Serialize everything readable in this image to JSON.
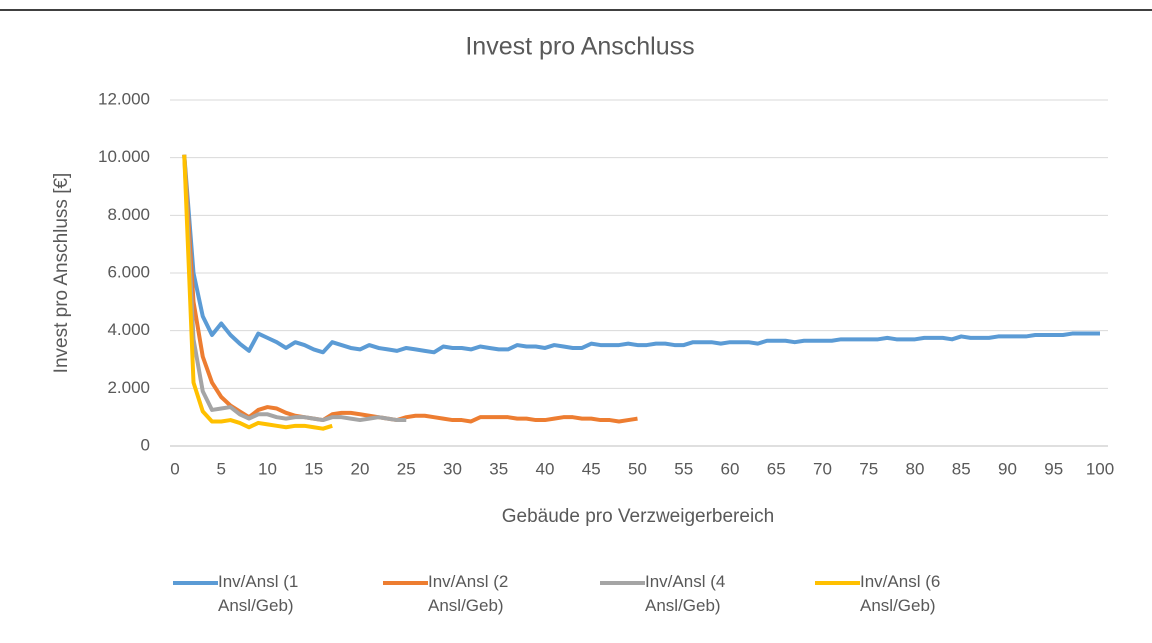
{
  "chart_data": {
    "type": "line",
    "title": "Invest pro Anschluss",
    "xlabel": "Gebäude pro Verzweigerbereich",
    "ylabel": "Invest pro Anschluss [€]",
    "xlim": [
      0,
      100
    ],
    "xticks": [
      0,
      5,
      10,
      15,
      20,
      25,
      30,
      35,
      40,
      45,
      50,
      55,
      60,
      65,
      70,
      75,
      80,
      85,
      90,
      95,
      100
    ],
    "ylim": [
      0,
      12000
    ],
    "yticks": [
      {
        "value": 0,
        "label": "0"
      },
      {
        "value": 2000,
        "label": "2.000"
      },
      {
        "value": 4000,
        "label": "4.000"
      },
      {
        "value": 6000,
        "label": "6.000"
      },
      {
        "value": 8000,
        "label": "8.000"
      },
      {
        "value": 10000,
        "label": "10.000"
      },
      {
        "value": 12000,
        "label": "12.000"
      }
    ],
    "grid": true,
    "legend": "bottom",
    "series": [
      {
        "name": "Inv/Ansl (1 Ansl/Geb)",
        "color": "#5b9bd5",
        "x": [
          1,
          2,
          3,
          4,
          5,
          6,
          7,
          8,
          9,
          10,
          11,
          12,
          13,
          14,
          15,
          16,
          17,
          18,
          19,
          20,
          21,
          22,
          23,
          24,
          25,
          26,
          27,
          28,
          29,
          30,
          31,
          32,
          33,
          34,
          35,
          36,
          37,
          38,
          39,
          40,
          41,
          42,
          43,
          44,
          45,
          46,
          47,
          48,
          49,
          50,
          51,
          52,
          53,
          54,
          55,
          56,
          57,
          58,
          59,
          60,
          61,
          62,
          63,
          64,
          65,
          66,
          67,
          68,
          69,
          70,
          71,
          72,
          73,
          74,
          75,
          76,
          77,
          78,
          79,
          80,
          81,
          82,
          83,
          84,
          85,
          86,
          87,
          88,
          89,
          90,
          91,
          92,
          93,
          94,
          95,
          96,
          97,
          98,
          99,
          100
        ],
        "values": [
          10100,
          6000,
          4500,
          3850,
          4250,
          3850,
          3550,
          3300,
          3900,
          3750,
          3600,
          3400,
          3600,
          3500,
          3350,
          3250,
          3600,
          3500,
          3400,
          3350,
          3500,
          3400,
          3350,
          3300,
          3400,
          3350,
          3300,
          3250,
          3450,
          3400,
          3400,
          3350,
          3450,
          3400,
          3350,
          3350,
          3500,
          3450,
          3450,
          3400,
          3500,
          3450,
          3400,
          3400,
          3550,
          3500,
          3500,
          3500,
          3550,
          3500,
          3500,
          3550,
          3550,
          3500,
          3500,
          3600,
          3600,
          3600,
          3550,
          3600,
          3600,
          3600,
          3550,
          3650,
          3650,
          3650,
          3600,
          3650,
          3650,
          3650,
          3650,
          3700,
          3700,
          3700,
          3700,
          3700,
          3750,
          3700,
          3700,
          3700,
          3750,
          3750,
          3750,
          3700,
          3800,
          3750,
          3750,
          3750,
          3800,
          3800,
          3800,
          3800,
          3850,
          3850,
          3850,
          3850,
          3900,
          3900,
          3900,
          3900
        ]
      },
      {
        "name": "Inv/Ansl (2 Ansl/Geb)",
        "color": "#ed7d31",
        "x": [
          1,
          2,
          3,
          4,
          5,
          6,
          7,
          8,
          9,
          10,
          11,
          12,
          13,
          14,
          15,
          16,
          17,
          18,
          19,
          20,
          21,
          22,
          23,
          24,
          25,
          26,
          27,
          28,
          29,
          30,
          31,
          32,
          33,
          34,
          35,
          36,
          37,
          38,
          39,
          40,
          41,
          42,
          43,
          44,
          45,
          46,
          47,
          48,
          49,
          50
        ],
        "values": [
          10100,
          5000,
          3100,
          2200,
          1700,
          1400,
          1200,
          1000,
          1250,
          1350,
          1300,
          1150,
          1050,
          1000,
          950,
          900,
          1100,
          1150,
          1150,
          1100,
          1050,
          1000,
          950,
          900,
          1000,
          1050,
          1050,
          1000,
          950,
          900,
          900,
          850,
          1000,
          1000,
          1000,
          1000,
          950,
          950,
          900,
          900,
          950,
          1000,
          1000,
          950,
          950,
          900,
          900,
          850,
          900,
          950
        ]
      },
      {
        "name": "Inv/Ansl (4 Ansl/Geb)",
        "color": "#a5a5a5",
        "x": [
          1,
          2,
          3,
          4,
          5,
          6,
          7,
          8,
          9,
          10,
          11,
          12,
          13,
          14,
          15,
          16,
          17,
          18,
          19,
          20,
          21,
          22,
          23,
          24,
          25
        ],
        "values": [
          10100,
          3700,
          1900,
          1250,
          1300,
          1350,
          1100,
          950,
          1100,
          1100,
          1000,
          950,
          1000,
          1000,
          950,
          900,
          1000,
          1000,
          950,
          900,
          950,
          1000,
          950,
          900,
          900
        ]
      },
      {
        "name": "Inv/Ansl (6 Ansl/Geb)",
        "color": "#ffc000",
        "x": [
          1,
          2,
          3,
          4,
          5,
          6,
          7,
          8,
          9,
          10,
          11,
          12,
          13,
          14,
          15,
          16,
          17
        ],
        "values": [
          10100,
          2200,
          1200,
          850,
          850,
          900,
          800,
          650,
          800,
          750,
          700,
          650,
          700,
          700,
          650,
          600,
          700
        ]
      }
    ]
  }
}
